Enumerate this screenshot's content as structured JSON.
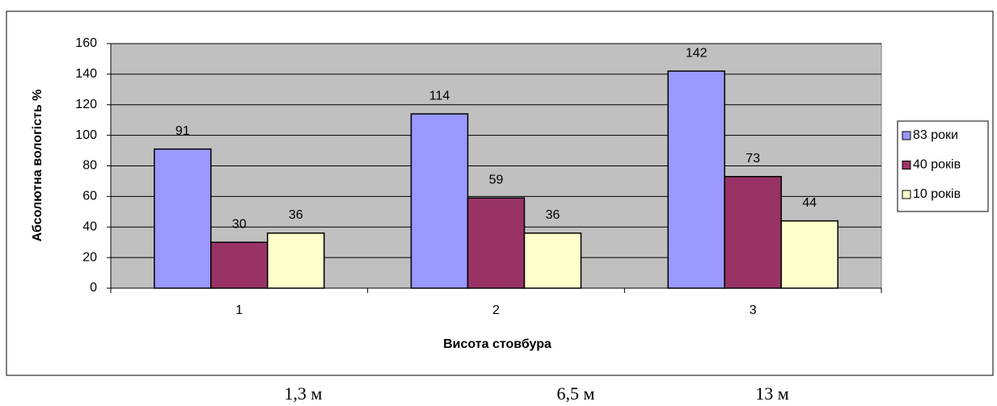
{
  "chart_data": {
    "type": "bar",
    "y_label": "Абсолютна вологість %",
    "x_label": "Висота стовбура",
    "categories": [
      "1",
      "2",
      "3"
    ],
    "series": [
      {
        "name": "83 роки",
        "color": "#9999ff",
        "values": [
          91,
          114,
          142
        ]
      },
      {
        "name": "40 років",
        "color": "#993366",
        "values": [
          30,
          59,
          73
        ]
      },
      {
        "name": "10 років",
        "color": "#ffffcc",
        "values": [
          36,
          36,
          44
        ]
      }
    ],
    "ylim": [
      0,
      160
    ],
    "yticks": [
      0,
      20,
      40,
      60,
      80,
      100,
      120,
      140,
      160
    ],
    "grid": true,
    "legend": "right"
  },
  "annotations": [
    "1,3 м",
    "6,5 м",
    "13 м"
  ]
}
